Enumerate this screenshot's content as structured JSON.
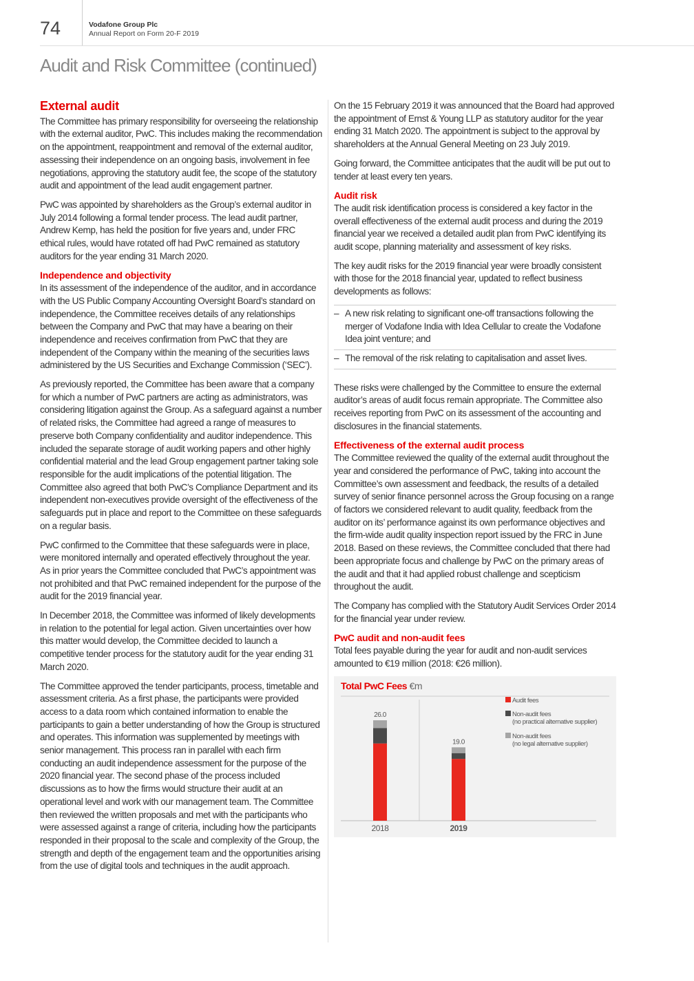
{
  "header": {
    "page_number": "74",
    "company": "Vodafone Group Plc",
    "report": "Annual Report on Form 20-F 2019",
    "title": "Audit and Risk Committee (continued)"
  },
  "left": {
    "h_external": "External audit",
    "p1": "The Committee has primary responsibility for overseeing the relationship with the external auditor, PwC. This includes making the recommendation on the appointment, reappointment and removal of the external auditor, assessing their independence on an ongoing basis, involvement in fee negotiations, approving the statutory audit fee, the scope of the statutory audit and appointment of the lead audit engagement partner.",
    "p2": "PwC was appointed by shareholders as the Group’s external auditor in July 2014 following a formal tender process. The lead audit partner, Andrew Kemp, has held the position for five years and, under FRC ethical rules, would have rotated off had PwC remained as statutory auditors for the year ending 31 March 2020.",
    "h_indep": "Independence and objectivity",
    "p3": "In its assessment of the independence of the auditor, and in accordance with the US Public Company Accounting Oversight Board’s standard on independence, the Committee receives details of any relationships between the Company and PwC that may have a bearing on their independence and receives confirmation from PwC that they are independent of the Company within the meaning of the securities laws administered by the US Securities and Exchange Commission (‘SEC’).",
    "p4": "As previously reported, the Committee has been aware that a company for which a number of PwC partners are acting as administrators, was considering litigation against the Group. As a safeguard against a number of related risks, the Committee had agreed a range of measures to preserve both Company confidentiality and auditor independence. This included the separate storage of audit working papers and other highly confidential material and the lead Group engagement partner taking sole responsible for the audit implications of the potential litigation. The Committee also agreed that both PwC’s Compliance Department and its independent non-executives provide oversight of the effectiveness of the safeguards put in place and report to the Committee on these safeguards on a regular basis.",
    "p5": "PwC confirmed to the Committee that these safeguards were in place, were monitored internally and operated effectively throughout the year. As in prior years the Committee concluded that PwC’s appointment was not prohibited and that PwC remained independent for the purpose of the audit for the 2019 financial year.",
    "p6": "In December 2018, the Committee was informed of likely developments in relation to the potential for legal action. Given uncertainties over how this matter would develop, the Committee decided to launch a competitive tender process for the statutory audit for the year ending 31 March 2020.",
    "p7": "The Committee approved the tender participants, process, timetable and assessment criteria. As a first phase, the participants were provided access to a data room which contained information to enable the participants to gain a better understanding of how the Group is structured and operates. This information was supplemented by meetings with senior management. This process ran in parallel with each firm conducting an audit independence assessment for the purpose of the 2020 financial year. The second phase of the process included discussions as to how the firms would structure their audit at an operational level and work with our management team. The Committee then reviewed the written proposals and met with the participants who were assessed against a range of criteria, including how the participants responded in their proposal to the scale and complexity of the Group, the strength and depth of the engagement team and the opportunities arising from the use of digital tools and techniques in the audit approach."
  },
  "right": {
    "p1": "On the 15 February 2019 it was announced that the Board had approved the appointment of Ernst & Young LLP as statutory auditor for the year ending 31 Match 2020. The appointment is subject to the approval by shareholders at the Annual General Meeting on 23 July 2019.",
    "p2": "Going forward, the Committee anticipates that the audit will be put out to tender at least every ten years.",
    "h_risk": "Audit risk",
    "p3": "The audit risk identification process is considered a key factor in the overall effectiveness of the external audit process and during the 2019 financial year we received a detailed audit plan from PwC identifying its audit scope, planning materiality and assessment of key risks.",
    "p4": "The key audit risks for the 2019 financial year were broadly consistent with those for the 2018 financial year, updated to reflect business developments as follows:",
    "bullets": [
      "A new risk relating to significant one-off transactions following the merger of Vodafone India with Idea Cellular to create the Vodafone Idea joint venture; and",
      "The removal of the risk relating to capitalisation and asset lives."
    ],
    "p5": "These risks were challenged by the Committee to ensure the external auditor’s areas of audit focus remain appropriate. The Committee also receives reporting from PwC on its assessment of the accounting and disclosures in the financial statements.",
    "h_eff": "Effectiveness of the external audit process",
    "p6": "The Committee reviewed the quality of the external audit throughout the year and considered the performance of PwC, taking into account the Committee’s own assessment and feedback, the results of a detailed survey of senior finance personnel across the Group focusing on a range of factors we considered relevant to audit quality, feedback from the auditor on its’ performance against its own performance objectives and the firm-wide audit quality inspection report issued by the FRC in June 2018. Based on these reviews, the Committee concluded that there had been appropriate focus and challenge by PwC on the primary areas of the audit and that it had applied robust challenge and scepticism throughout the audit.",
    "p7": "The Company has complied with the Statutory Audit Services Order 2014 for the financial year under review.",
    "h_fees": "PwC audit and non-audit fees",
    "p8": "Total fees payable during the year for audit and non-audit services amounted to €19 million (2018: €26 million)."
  },
  "chart_data": {
    "type": "bar",
    "stacked": true,
    "title": "Total PwC Fees",
    "unit": "€m",
    "categories": [
      "2018",
      "2019"
    ],
    "totals_labels": [
      "26.0",
      "19.0"
    ],
    "series": [
      {
        "name": "Audit fees",
        "color": "#e8281e",
        "values": [
          20,
          16
        ]
      },
      {
        "name": "Non-audit fees",
        "name2": "(no practical alternative supplier)",
        "color": "#4a4a4a",
        "values": [
          4,
          1.5
        ]
      },
      {
        "name": "Non-audit fees",
        "name2": "(no legal alternative supplier)",
        "color": "#a6a6a6",
        "values": [
          2,
          1.5
        ]
      }
    ],
    "ylim": [
      0,
      26
    ],
    "legend": "top-right",
    "grid": false
  }
}
